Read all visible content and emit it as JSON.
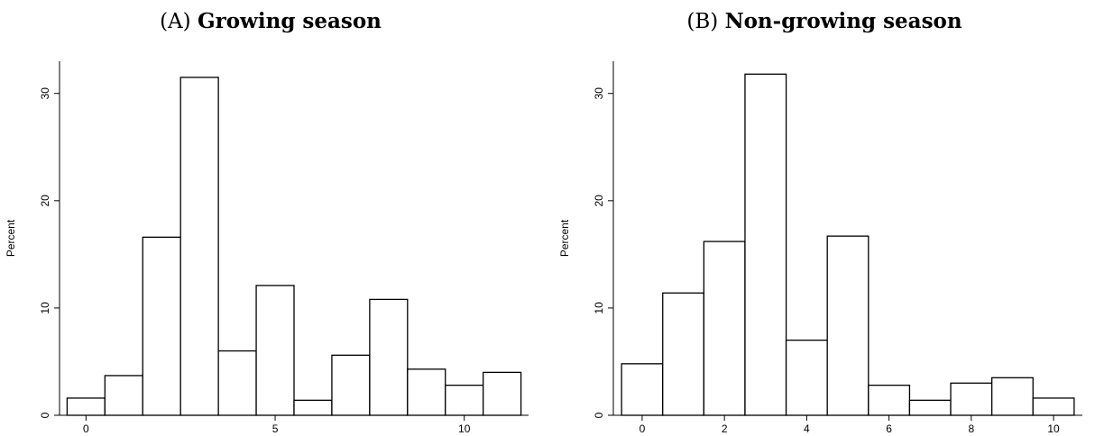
{
  "chart_data": [
    {
      "type": "bar",
      "panel_tag": "(A)",
      "title": "Growing season",
      "xlabel": "",
      "ylabel": "Percent",
      "bin_width": 1,
      "bin_centers": [
        0,
        1,
        2,
        3,
        4,
        5,
        6,
        7,
        8,
        9,
        10,
        11
      ],
      "values": [
        1.6,
        3.7,
        16.6,
        31.5,
        6.0,
        12.1,
        1.4,
        5.6,
        10.8,
        4.3,
        2.8,
        4.0
      ],
      "xlim": [
        -0.7,
        11.7
      ],
      "ylim": [
        0,
        33
      ],
      "xticks": [
        0,
        5,
        10
      ],
      "yticks": [
        0,
        10,
        20,
        30
      ],
      "grid": false
    },
    {
      "type": "bar",
      "panel_tag": "(B)",
      "title": "Non-growing season",
      "xlabel": "",
      "ylabel": "Percent",
      "bin_width": 1,
      "bin_centers": [
        0,
        1,
        2,
        3,
        4,
        5,
        6,
        7,
        8,
        9,
        10
      ],
      "values": [
        4.8,
        11.4,
        16.2,
        31.8,
        7.0,
        16.7,
        2.8,
        1.4,
        3.0,
        3.5,
        1.6
      ],
      "xlim": [
        -0.7,
        10.7
      ],
      "ylim": [
        0,
        33
      ],
      "xticks": [
        0,
        2,
        4,
        6,
        8,
        10
      ],
      "yticks": [
        0,
        10,
        20,
        30
      ],
      "grid": false
    }
  ]
}
